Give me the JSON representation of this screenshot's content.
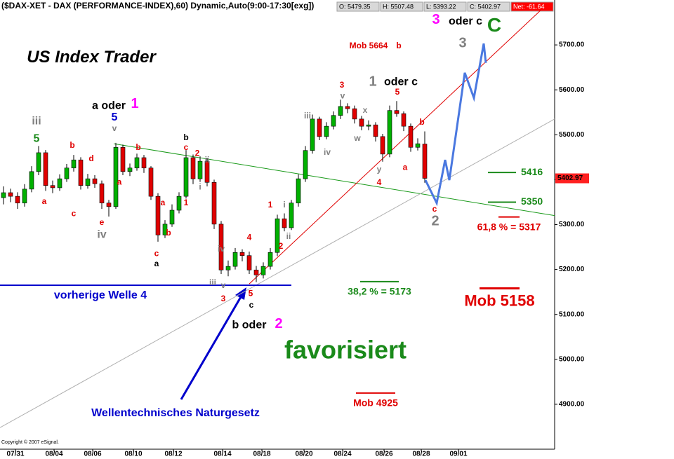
{
  "chart_data": {
    "type": "candlestick",
    "title": "($DAX-XET - DAX (PERFORMANCE-INDEX),60) Dynamic,Auto(9:00-17:30[exg])",
    "quote": [
      "O: 5479.35",
      "H: 5507.48",
      "L: 5393.22",
      "C: 5402.97",
      "Net: -61.64"
    ],
    "copyright": "Copyright © 2007 eSignal.",
    "colors": {
      "up": "#00b000",
      "down": "#e00000",
      "outline": "#000000"
    },
    "open": [
      5360,
      5371,
      5363,
      5348,
      5379,
      5418,
      5460,
      5387,
      5382,
      5402,
      5426,
      5444,
      5387,
      5402,
      5391,
      5348,
      5340,
      5472,
      5418,
      5426,
      5449,
      5426,
      5363,
      5277,
      5301,
      5332,
      5363,
      5449,
      5402,
      5441,
      5394,
      5301,
      5199,
      5207,
      5238,
      5231,
      5199,
      5188,
      5207,
      5238,
      5313,
      5293,
      5348,
      5402,
      5465,
      5535,
      5496,
      5519,
      5543,
      5563,
      5558,
      5535,
      5519,
      5522,
      5496,
      5457,
      5554,
      5547,
      5519,
      5472,
      5479.35
    ],
    "high": [
      5385,
      5380,
      5372,
      5390,
      5430,
      5475,
      5466,
      5398,
      5412,
      5435,
      5455,
      5450,
      5413,
      5410,
      5398,
      5355,
      5482,
      5478,
      5436,
      5458,
      5455,
      5430,
      5370,
      5310,
      5345,
      5372,
      5466,
      5456,
      5452,
      5448,
      5400,
      5308,
      5220,
      5248,
      5245,
      5240,
      5208,
      5216,
      5248,
      5322,
      5325,
      5355,
      5412,
      5475,
      5545,
      5540,
      5528,
      5552,
      5578,
      5570,
      5565,
      5542,
      5532,
      5528,
      5502,
      5565,
      5575,
      5552,
      5525,
      5492,
      5507.48
    ],
    "low": [
      5345,
      5350,
      5335,
      5340,
      5372,
      5410,
      5375,
      5370,
      5375,
      5395,
      5418,
      5378,
      5380,
      5382,
      5335,
      5318,
      5335,
      5410,
      5408,
      5420,
      5415,
      5355,
      5262,
      5270,
      5295,
      5325,
      5358,
      5390,
      5395,
      5385,
      5290,
      5190,
      5185,
      5200,
      5218,
      5190,
      5172,
      5180,
      5200,
      5230,
      5285,
      5288,
      5340,
      5395,
      5458,
      5488,
      5490,
      5512,
      5535,
      5548,
      5525,
      5510,
      5510,
      5485,
      5440,
      5450,
      5540,
      5508,
      5462,
      5465,
      5393.22
    ],
    "close": [
      5371,
      5363,
      5348,
      5379,
      5418,
      5460,
      5387,
      5382,
      5402,
      5426,
      5444,
      5387,
      5402,
      5391,
      5348,
      5340,
      5472,
      5418,
      5426,
      5449,
      5426,
      5363,
      5277,
      5301,
      5332,
      5363,
      5449,
      5402,
      5441,
      5394,
      5301,
      5199,
      5207,
      5238,
      5231,
      5199,
      5188,
      5207,
      5238,
      5313,
      5293,
      5348,
      5402,
      5465,
      5535,
      5496,
      5519,
      5543,
      5563,
      5558,
      5535,
      5519,
      5522,
      5496,
      5457,
      5554,
      5547,
      5519,
      5472,
      5480,
      5402.97
    ],
    "last_price": {
      "value": 5402.97,
      "label": "5402.97"
    },
    "xlim": [
      -0.5,
      78.5
    ],
    "xticks": [
      {
        "value": 1.7,
        "label": "07/31"
      },
      {
        "value": 7.2,
        "label": "08/04"
      },
      {
        "value": 12.7,
        "label": "08/06"
      },
      {
        "value": 18.5,
        "label": "08/10"
      },
      {
        "value": 24.2,
        "label": "08/12"
      },
      {
        "value": 31.2,
        "label": "08/14"
      },
      {
        "value": 36.8,
        "label": "08/18"
      },
      {
        "value": 42.8,
        "label": "08/20"
      },
      {
        "value": 48.3,
        "label": "08/24"
      },
      {
        "value": 54.2,
        "label": "08/26"
      },
      {
        "value": 59.5,
        "label": "08/28"
      },
      {
        "value": 64.8,
        "label": "09/01"
      }
    ],
    "ylim": [
      4800,
      5800
    ],
    "yticks": [
      {
        "value": 4900,
        "label": "4900.00"
      },
      {
        "value": 5000,
        "label": "5000.00"
      },
      {
        "value": 5100,
        "label": "5100.00"
      },
      {
        "value": 5200,
        "label": "5200.00"
      },
      {
        "value": 5300,
        "label": "5300.00"
      },
      {
        "value": 5400,
        "label": "5400.00"
      },
      {
        "value": 5500,
        "label": "5500.00"
      },
      {
        "value": 5600,
        "label": "5600.00"
      },
      {
        "value": 5700,
        "label": "5700.00"
      }
    ],
    "lines": [
      {
        "color": "#1a9a1a",
        "x": [
          15.7,
          78.5
        ],
        "y": [
          5480,
          5320
        ]
      },
      {
        "color": "#e00000",
        "x": [
          35,
          76.5
        ],
        "y": [
          5168,
          5777
        ]
      },
      {
        "color": "#b0b0b0",
        "x": [
          -0.5,
          78.5
        ],
        "y": [
          4848,
          5535
        ]
      },
      {
        "color": "#0000cc",
        "x": [
          -0.5,
          41
        ],
        "y": [
          5165,
          5165
        ]
      }
    ],
    "projection": {
      "color": "#4a78e0",
      "x": [
        60.1,
        61.7,
        62.9,
        63.5,
        65.7,
        67,
        68.4,
        68.7
      ],
      "y": [
        5399,
        5348,
        5444,
        5399,
        5638,
        5582,
        5703,
        5660
      ]
    },
    "levels": [
      {
        "value": 5416,
        "label": "5416",
        "color": "#1a8a1a",
        "x": [
          69,
          73
        ],
        "label_style": "right"
      },
      {
        "value": 5350,
        "label": "5350",
        "color": "#1a8a1a",
        "x": [
          69,
          73
        ],
        "label_style": "right"
      },
      {
        "value": 5317,
        "label": "61,8 % = 5317",
        "color": "#e00000",
        "x": [
          70.5,
          73.5
        ],
        "label_style": "below"
      },
      {
        "value": 5158,
        "label": "Mob 5158",
        "color": "#e00000",
        "x": [
          67.8,
          73.5
        ],
        "label_style": "below-large"
      },
      {
        "value": 5173,
        "label": "38,2 % = 5173",
        "color": "#1a8a1a",
        "x": [
          50.8,
          56.3
        ],
        "label_style": "below"
      },
      {
        "value": 4925,
        "label": "Mob 4925",
        "color": "#e00000",
        "x": [
          50.2,
          55.8
        ],
        "label_style": "below"
      }
    ],
    "annotations": [
      {
        "text": "US Index Trader",
        "x": 12.5,
        "y": 5671,
        "color": "#000000",
        "size": "title"
      },
      {
        "text": "iii",
        "x": 4.7,
        "y": 5530,
        "color": "#808080",
        "size": "m"
      },
      {
        "text": "5",
        "x": 4.7,
        "y": 5491,
        "color": "#1a8a1a",
        "size": "m"
      },
      {
        "text": "a",
        "x": 5.8,
        "y": 5351,
        "color": "#e00000",
        "size": "s"
      },
      {
        "text": "b",
        "x": 9.8,
        "y": 5476,
        "color": "#e00000",
        "size": "s"
      },
      {
        "text": "c",
        "x": 10,
        "y": 5324,
        "color": "#e00000",
        "size": "s"
      },
      {
        "text": "d",
        "x": 12.5,
        "y": 5446,
        "color": "#e00000",
        "size": "s"
      },
      {
        "text": "e",
        "x": 14,
        "y": 5304,
        "color": "#e00000",
        "size": "s"
      },
      {
        "text": "iv",
        "x": 14,
        "y": 5277,
        "color": "#808080",
        "size": "m"
      },
      {
        "text": "a oder",
        "x": 15,
        "y": 5564,
        "color": "#000000",
        "size": "m"
      },
      {
        "text": "1",
        "x": 18.7,
        "y": 5568,
        "color": "#ff00ff",
        "size": "l"
      },
      {
        "text": "5",
        "x": 15.8,
        "y": 5538,
        "color": "#0000cc",
        "size": "m"
      },
      {
        "text": "v",
        "x": 15.8,
        "y": 5513,
        "color": "#808080",
        "size": "s"
      },
      {
        "text": "a",
        "x": 16.5,
        "y": 5394,
        "color": "#e00000",
        "size": "s"
      },
      {
        "text": "b",
        "x": 19.2,
        "y": 5471,
        "color": "#e00000",
        "size": "s"
      },
      {
        "text": "c",
        "x": 21.8,
        "y": 5235,
        "color": "#e00000",
        "size": "s"
      },
      {
        "text": "a",
        "x": 21.8,
        "y": 5212,
        "color": "#000000",
        "size": "s"
      },
      {
        "text": "a",
        "x": 22.7,
        "y": 5348,
        "color": "#e00000",
        "size": "s"
      },
      {
        "text": "b",
        "x": 23.5,
        "y": 5281,
        "color": "#e00000",
        "size": "s"
      },
      {
        "text": "b",
        "x": 26,
        "y": 5493,
        "color": "#000000",
        "size": "s"
      },
      {
        "text": "c",
        "x": 26,
        "y": 5471,
        "color": "#e00000",
        "size": "s"
      },
      {
        "text": "2",
        "x": 27.6,
        "y": 5458,
        "color": "#e00000",
        "size": "s"
      },
      {
        "text": "1",
        "x": 26,
        "y": 5348,
        "color": "#e00000",
        "size": "s"
      },
      {
        "text": "ii",
        "x": 29,
        "y": 5443,
        "color": "#808080",
        "size": "s"
      },
      {
        "text": "i",
        "x": 28,
        "y": 5383,
        "color": "#808080",
        "size": "s"
      },
      {
        "text": "iv",
        "x": 31,
        "y": 5245,
        "color": "#808080",
        "size": "s"
      },
      {
        "text": "4",
        "x": 35,
        "y": 5271,
        "color": "#e00000",
        "size": "s"
      },
      {
        "text": "iii",
        "x": 29.8,
        "y": 5170,
        "color": "#808080",
        "size": "s"
      },
      {
        "text": "v",
        "x": 31.3,
        "y": 5164,
        "color": "#808080",
        "size": "s"
      },
      {
        "text": "3",
        "x": 31.3,
        "y": 5134,
        "color": "#e00000",
        "size": "s"
      },
      {
        "text": "5",
        "x": 35.2,
        "y": 5146,
        "color": "#e00000",
        "size": "s"
      },
      {
        "text": "c",
        "x": 35.3,
        "y": 5120,
        "color": "#000000",
        "size": "s"
      },
      {
        "text": "b oder",
        "x": 35,
        "y": 5076,
        "color": "#000000",
        "size": "m"
      },
      {
        "text": "2",
        "x": 39.2,
        "y": 5078,
        "color": "#ff00ff",
        "size": "l"
      },
      {
        "text": "1",
        "x": 38,
        "y": 5343,
        "color": "#e00000",
        "size": "s"
      },
      {
        "text": "2",
        "x": 39.5,
        "y": 5251,
        "color": "#e00000",
        "size": "s"
      },
      {
        "text": "i",
        "x": 40,
        "y": 5343,
        "color": "#808080",
        "size": "s"
      },
      {
        "text": "ii",
        "x": 40.6,
        "y": 5273,
        "color": "#808080",
        "size": "s"
      },
      {
        "text": "iii",
        "x": 43.3,
        "y": 5541,
        "color": "#808080",
        "size": "s"
      },
      {
        "text": "iv",
        "x": 46.1,
        "y": 5460,
        "color": "#808080",
        "size": "s"
      },
      {
        "text": "3",
        "x": 48.2,
        "y": 5610,
        "color": "#e00000",
        "size": "s"
      },
      {
        "text": "v",
        "x": 48.3,
        "y": 5586,
        "color": "#808080",
        "size": "s"
      },
      {
        "text": "w",
        "x": 50.4,
        "y": 5491,
        "color": "#808080",
        "size": "s"
      },
      {
        "text": "x",
        "x": 51.5,
        "y": 5554,
        "color": "#808080",
        "size": "s"
      },
      {
        "text": "y",
        "x": 53.5,
        "y": 5422,
        "color": "#808080",
        "size": "s"
      },
      {
        "text": "4",
        "x": 53.5,
        "y": 5393,
        "color": "#e00000",
        "size": "s"
      },
      {
        "text": "1",
        "x": 52.6,
        "y": 5617,
        "color": "#808080",
        "size": "l"
      },
      {
        "text": "oder c",
        "x": 56.6,
        "y": 5617,
        "color": "#000000",
        "size": "m"
      },
      {
        "text": "5",
        "x": 56.1,
        "y": 5594,
        "color": "#e00000",
        "size": "s"
      },
      {
        "text": "a",
        "x": 57.2,
        "y": 5427,
        "color": "#e00000",
        "size": "s"
      },
      {
        "text": "b",
        "x": 59.6,
        "y": 5527,
        "color": "#e00000",
        "size": "s"
      },
      {
        "text": "c",
        "x": 61.4,
        "y": 5334,
        "color": "#e00000",
        "size": "s"
      },
      {
        "text": "2",
        "x": 61.5,
        "y": 5307,
        "color": "#808080",
        "size": "l"
      },
      {
        "text": "3",
        "x": 61.6,
        "y": 5755,
        "color": "#ff00ff",
        "size": "l"
      },
      {
        "text": "oder c",
        "x": 65.8,
        "y": 5752,
        "color": "#000000",
        "size": "m"
      },
      {
        "text": "C",
        "x": 69.9,
        "y": 5741,
        "color": "#1a8a1a",
        "size": "xl"
      },
      {
        "text": "3",
        "x": 65.4,
        "y": 5703,
        "color": "#808080",
        "size": "l"
      },
      {
        "text": "Mob 5664",
        "x": 52,
        "y": 5697,
        "color": "#e00000",
        "size": "s"
      },
      {
        "text": "b",
        "x": 56.3,
        "y": 5697,
        "color": "#e00000",
        "size": "s"
      },
      {
        "text": "vorherige Welle 4",
        "x": 13.8,
        "y": 5142,
        "color": "#0000cc",
        "size": "m"
      },
      {
        "text": "Wellentechnisches Naturgesetz",
        "x": 24.5,
        "y": 4880,
        "color": "#0000cc",
        "size": "m"
      },
      {
        "text": "favorisiert",
        "x": 48.7,
        "y": 5017,
        "color": "#1a8a1a",
        "size": "xxl"
      }
    ]
  }
}
